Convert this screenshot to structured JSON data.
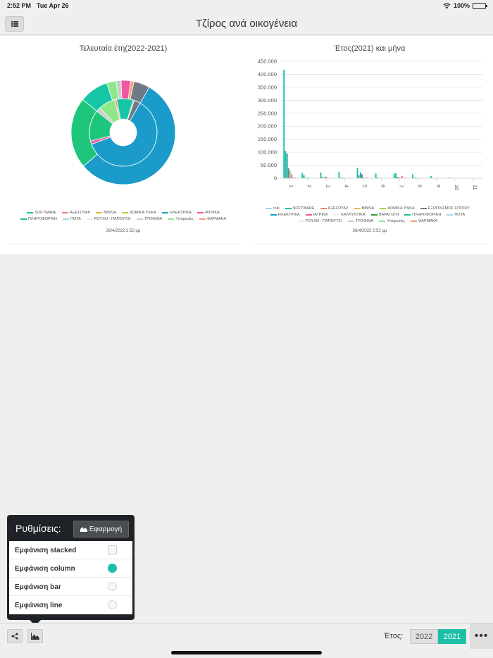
{
  "status_bar": {
    "time": "2:52 PM",
    "date": "Tue Apr 26",
    "battery": "100%"
  },
  "header": {
    "title": "Τζίρος ανά οικογένεια",
    "menu_icon": "list-icon"
  },
  "colors": {
    "accent": "#1dbfa7"
  },
  "chart_data": [
    {
      "type": "pie",
      "title": "Τελευταία έτη(2022-2021)",
      "donut": true,
      "rings": [
        {
          "name": "2022",
          "slices": [
            {
              "label": "SOFTWARE",
              "value": 55.5,
              "color": "#1a9bc9"
            },
            {
              "label": "ΠΛΗΡΟΦΟΡΙΚΗ",
              "value": 22,
              "color": "#1ec67c"
            },
            {
              "label": "ΗΛΕΚΤΡΙΚΑ",
              "value": 9,
              "color": "#16c7a7"
            },
            {
              "label": "Υπηρεσίες",
              "value": 3,
              "color": "#8ee88a"
            },
            {
              "label": "ΤΡΟΦΙΜΑ",
              "value": 1.5,
              "color": "#c9ccce"
            },
            {
              "label": "ΙΑΤΡΙΚΑ",
              "value": 3,
              "color": "#f058a0"
            },
            {
              "label": "ΦΑΡΜΑΚΑ",
              "value": 1,
              "color": "#f3a07a"
            },
            {
              "label": "ΕΞΟΠΛΙΣΜΟΣ ΣΠΙΤΙΟΥ",
              "value": 5,
              "color": "#6f7a86"
            }
          ]
        },
        {
          "name": "2021",
          "slices": [
            {
              "label": "SOFTWARE",
              "value": 61,
              "color": "#1a9bc9"
            },
            {
              "label": "ΙΑΤΡΙΚΑ",
              "value": 1.5,
              "color": "#f058a0"
            },
            {
              "label": "ΠΛΗΡΟΦΟΡΙΚΗ",
              "value": 15,
              "color": "#1ec67c"
            },
            {
              "label": "ΤΡΟΦΙΜΑ",
              "value": 2,
              "color": "#c9ccce"
            },
            {
              "label": "Υπηρεσίες",
              "value": 8,
              "color": "#8ee88a"
            },
            {
              "label": "ΦΑΡΜΑΚΑ",
              "value": 1,
              "color": "#f3a07a"
            },
            {
              "label": "ΗΛΕΚΤΡΙΚΑ",
              "value": 8,
              "color": "#16c7a7"
            },
            {
              "label": "ΑΞΕΣΟΥΑΡ",
              "value": 0.5,
              "color": "#f07f76"
            },
            {
              "label": "ΕΞΟΠΛΙΣΜΟΣ ΣΠΙΤΙΟΥ",
              "value": 3,
              "color": "#6f7a86"
            }
          ]
        }
      ],
      "legend": [
        {
          "label": "SOFTWARE",
          "color": "#1dbfa7"
        },
        {
          "label": "ΑΞΕΣΟΥΑΡ",
          "color": "#f07f76"
        },
        {
          "label": "ΒΙΒΛΙΑ",
          "color": "#f0b84a"
        },
        {
          "label": "ΔΟΜΙΚΑ ΥΛΙΚΑ",
          "color": "#a6d84e"
        },
        {
          "label": "ΗΛΕΚΤΡΙΚΑ",
          "color": "#1a9bc9"
        },
        {
          "label": "ΙΑΤΡΙΚΑ",
          "color": "#f058a0"
        },
        {
          "label": "ΠΛΗΡΟΦΟΡΙΚΗ",
          "color": "#1ec67c"
        },
        {
          "label": "ΠΟΤΑ",
          "color": "#9fd8e8"
        },
        {
          "label": "ΡΟΥΧΟ - ΠΑΠΟΥΤΣΙ",
          "color": "#ececec"
        },
        {
          "label": "ΤΡΟΦΙΜΑ",
          "color": "#c9ccce"
        },
        {
          "label": "Υπηρεσίες",
          "color": "#8ee88a"
        },
        {
          "label": "ΦΑΡΜΑΚΑ",
          "color": "#f3a07a"
        }
      ],
      "timestamp": "26/4/2022 2:52 μμ"
    },
    {
      "type": "bar",
      "title": "Έτος(2021) και μήνα",
      "categories": [
        "1",
        "2",
        "3",
        "4",
        "5",
        "6",
        "7",
        "8",
        "9",
        "10",
        "11"
      ],
      "ylim": [
        0,
        450000
      ],
      "yticks": [
        "0",
        "50.000",
        "100.000",
        "150.000",
        "200.000",
        "250.000",
        "300.000",
        "350.000",
        "400.000",
        "450.000"
      ],
      "series": [
        {
          "name": "SOFTWARE",
          "color": "#1dbfa7",
          "values": [
            418000,
            20000,
            22000,
            25000,
            40000,
            18000,
            18000,
            15000,
            9000,
            3000,
            2000
          ]
        },
        {
          "name": "ΠΛΗΡΟΦΟΡΙΚΗ",
          "color": "#1ec67c",
          "values": [
            105000,
            12000,
            5000,
            3000,
            12000,
            3000,
            20000,
            3000,
            2000,
            1000,
            0
          ]
        },
        {
          "name": "ΗΛΕΚΤΡΙΚΑ",
          "color": "#1a9bc9",
          "values": [
            95000,
            3000,
            2000,
            2000,
            22000,
            1000,
            5000,
            2000,
            1000,
            0,
            0
          ]
        },
        {
          "name": "ΕΞΟΠΛΙΣΜΟΣ ΣΠΙΤΙΟΥ",
          "color": "#6f7a86",
          "values": [
            38000,
            1000,
            6000,
            2000,
            15000,
            1000,
            3000,
            1000,
            0,
            0,
            0
          ]
        },
        {
          "name": "Υπηρεσίες",
          "color": "#8ee88a",
          "values": [
            28000,
            4000,
            6000,
            2000,
            3000,
            1000,
            2000,
            1000,
            0,
            0,
            0
          ]
        },
        {
          "name": "ΙΑΤΡΙΚΑ",
          "color": "#f058a0",
          "values": [
            15000,
            1000,
            1000,
            1000,
            1000,
            0,
            8000,
            1000,
            0,
            0,
            0
          ]
        },
        {
          "name": "ΤΡΟΦΙΜΑ",
          "color": "#c9ccce",
          "values": [
            5000,
            1000,
            2000,
            1000,
            5000,
            1000,
            1000,
            0,
            0,
            0,
            0
          ]
        },
        {
          "name": "ΑΞΕΣΟΥΑΡ",
          "color": "#f07f76",
          "values": [
            3000,
            0,
            2000,
            1000,
            0,
            0,
            2000,
            0,
            0,
            0,
            0
          ]
        }
      ],
      "legend": [
        {
          "label": "null",
          "color": "#9fd8e8"
        },
        {
          "label": "SOFTWARE",
          "color": "#1dbfa7"
        },
        {
          "label": "ΑΞΕΣΟΥΑΡ",
          "color": "#f07f76"
        },
        {
          "label": "ΒΙΒΛΙΑ",
          "color": "#f0b84a"
        },
        {
          "label": "ΔΟΜΙΚΑ ΥΛΙΚΑ",
          "color": "#a6d84e"
        },
        {
          "label": "ΕΞΟΠΛΙΣΜΟΣ ΣΠΙΤΙΟΥ",
          "color": "#6f7a86"
        },
        {
          "label": "ΗΛΕΚΤΡΙΚΑ",
          "color": "#1a9bc9"
        },
        {
          "label": "ΙΑΤΡΙΚΑ",
          "color": "#f058a0"
        },
        {
          "label": "ΚΑΛΛΥΝΤΙΚΑ",
          "color": "#ececec"
        },
        {
          "label": "ΠΑΡΑΓΩΓΗ",
          "color": "#2ca02c"
        },
        {
          "label": "ΠΛΗΡΟΦΟΡΙΚΗ",
          "color": "#1ec67c"
        },
        {
          "label": "ΠΟΤΑ",
          "color": "#9fd8e8"
        },
        {
          "label": "ΡΟΥΧΟ - ΠΑΠΟΥΤΣΙ",
          "color": "#ececec"
        },
        {
          "label": "ΤΡΟΦΙΜΑ",
          "color": "#c9ccce"
        },
        {
          "label": "Υπηρεσίες",
          "color": "#8ee88a"
        },
        {
          "label": "ΦΑΡΜΑΚΑ",
          "color": "#f3a07a"
        }
      ],
      "timestamp": "26/4/2022 2:52 μμ"
    }
  ],
  "settings": {
    "title": "Ρυθμίσεις:",
    "apply_label": "Εφαρμογή",
    "options": [
      {
        "label": "Εμφάνιση stacked",
        "control": "checkbox",
        "checked": false
      },
      {
        "label": "Εμφάνιση column",
        "control": "radio",
        "checked": true
      },
      {
        "label": "Εμφάνιση bar",
        "control": "radio",
        "checked": false
      },
      {
        "label": "Εμφάνιση line",
        "control": "radio",
        "checked": false
      }
    ]
  },
  "toolbar": {
    "share_icon": "share-icon",
    "chart_settings_icon": "area-chart-icon",
    "year_label": "Έτος:",
    "years": [
      "2022",
      "2021"
    ],
    "selected_year": "2021",
    "more_label": "•••"
  }
}
